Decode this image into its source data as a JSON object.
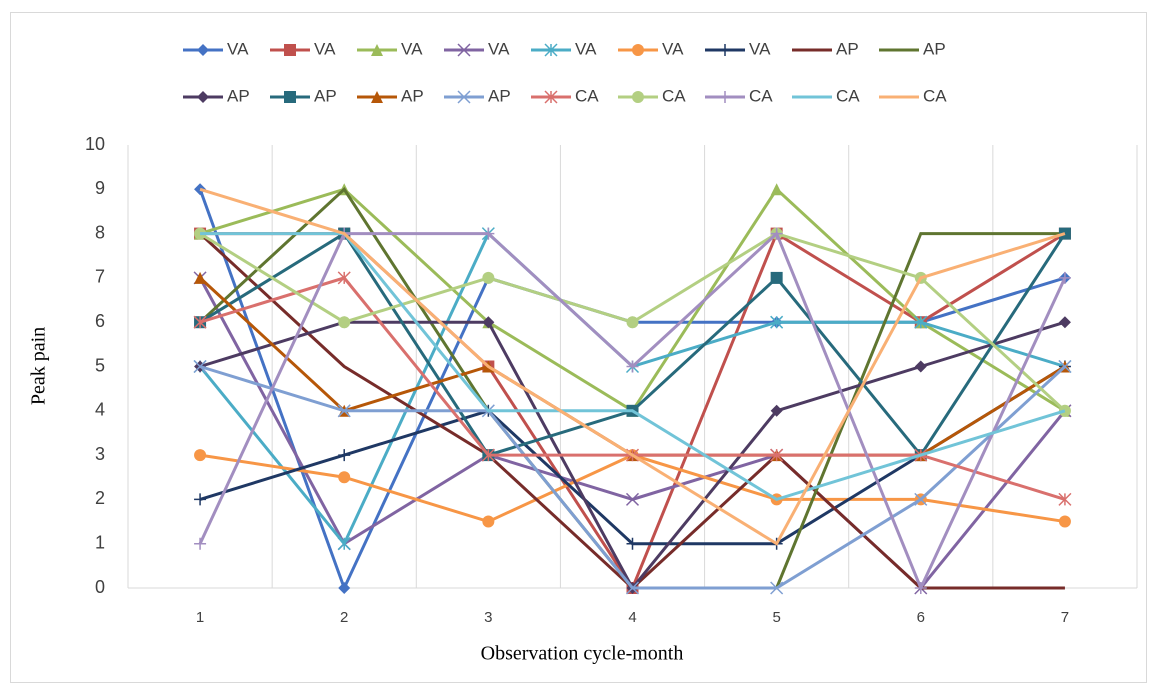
{
  "chart_data": {
    "type": "line",
    "x_label": "Observation cycle-month",
    "y_label": "Peak pain",
    "categories": [
      "1",
      "2",
      "3",
      "4",
      "5",
      "6",
      "7"
    ],
    "ylim": [
      0,
      10
    ],
    "yticks": [
      0,
      1,
      2,
      3,
      4,
      5,
      6,
      7,
      8,
      9,
      10
    ],
    "grid": "vertical",
    "legend": "top",
    "series": [
      {
        "name": "VA",
        "color": "#4472c4",
        "marker": "diamond",
        "values": [
          9,
          0,
          7,
          6,
          6,
          6,
          7
        ]
      },
      {
        "name": "VA",
        "color": "#c0504d",
        "marker": "square",
        "values": [
          8,
          8,
          5,
          0,
          8,
          6,
          8
        ]
      },
      {
        "name": "VA",
        "color": "#9bbb59",
        "marker": "triangle",
        "values": [
          8,
          9,
          6,
          4,
          9,
          6,
          4
        ]
      },
      {
        "name": "VA",
        "color": "#8064a2",
        "marker": "x",
        "values": [
          7,
          1,
          3,
          2,
          3,
          0,
          4
        ]
      },
      {
        "name": "VA",
        "color": "#4bacc6",
        "marker": "star",
        "values": [
          5,
          1,
          8,
          5,
          6,
          6,
          5
        ]
      },
      {
        "name": "VA",
        "color": "#f79646",
        "marker": "circle",
        "values": [
          3,
          2.5,
          1.5,
          3,
          2,
          2,
          1.5
        ]
      },
      {
        "name": "VA",
        "color": "#1f3864",
        "marker": "plus",
        "values": [
          2,
          3,
          4,
          1,
          1,
          3,
          5
        ]
      },
      {
        "name": "AP",
        "color": "#772c2a",
        "marker": "none",
        "values": [
          8,
          5,
          3,
          0,
          3,
          0,
          0
        ]
      },
      {
        "name": "AP",
        "color": "#5f7530",
        "marker": "none",
        "values": [
          6,
          9,
          4,
          0,
          0,
          8,
          8
        ]
      },
      {
        "name": "AP",
        "color": "#4d3b62",
        "marker": "diamond",
        "values": [
          5,
          6,
          6,
          0,
          4,
          5,
          6
        ]
      },
      {
        "name": "AP",
        "color": "#276a7c",
        "marker": "square",
        "values": [
          6,
          8,
          3,
          4,
          7,
          3,
          8
        ]
      },
      {
        "name": "AP",
        "color": "#b65708",
        "marker": "triangle",
        "values": [
          7,
          4,
          5,
          3,
          3,
          3,
          5
        ]
      },
      {
        "name": "AP",
        "color": "#7f9fd2",
        "marker": "x",
        "values": [
          5,
          4,
          4,
          0,
          0,
          2,
          5
        ]
      },
      {
        "name": "CA",
        "color": "#d9706d",
        "marker": "star",
        "values": [
          6,
          7,
          3,
          3,
          3,
          3,
          2
        ]
      },
      {
        "name": "CA",
        "color": "#b3cf82",
        "marker": "circle",
        "values": [
          8,
          6,
          7,
          6,
          8,
          7,
          4
        ]
      },
      {
        "name": "CA",
        "color": "#a28ec0",
        "marker": "plus",
        "values": [
          1,
          8,
          8,
          5,
          8,
          0,
          7
        ]
      },
      {
        "name": "CA",
        "color": "#71c4d8",
        "marker": "none",
        "values": [
          8,
          8,
          4,
          4,
          2,
          3,
          4
        ]
      },
      {
        "name": "CA",
        "color": "#f9b074",
        "marker": "none",
        "values": [
          9,
          8,
          5,
          3,
          1,
          7,
          8
        ]
      }
    ]
  }
}
